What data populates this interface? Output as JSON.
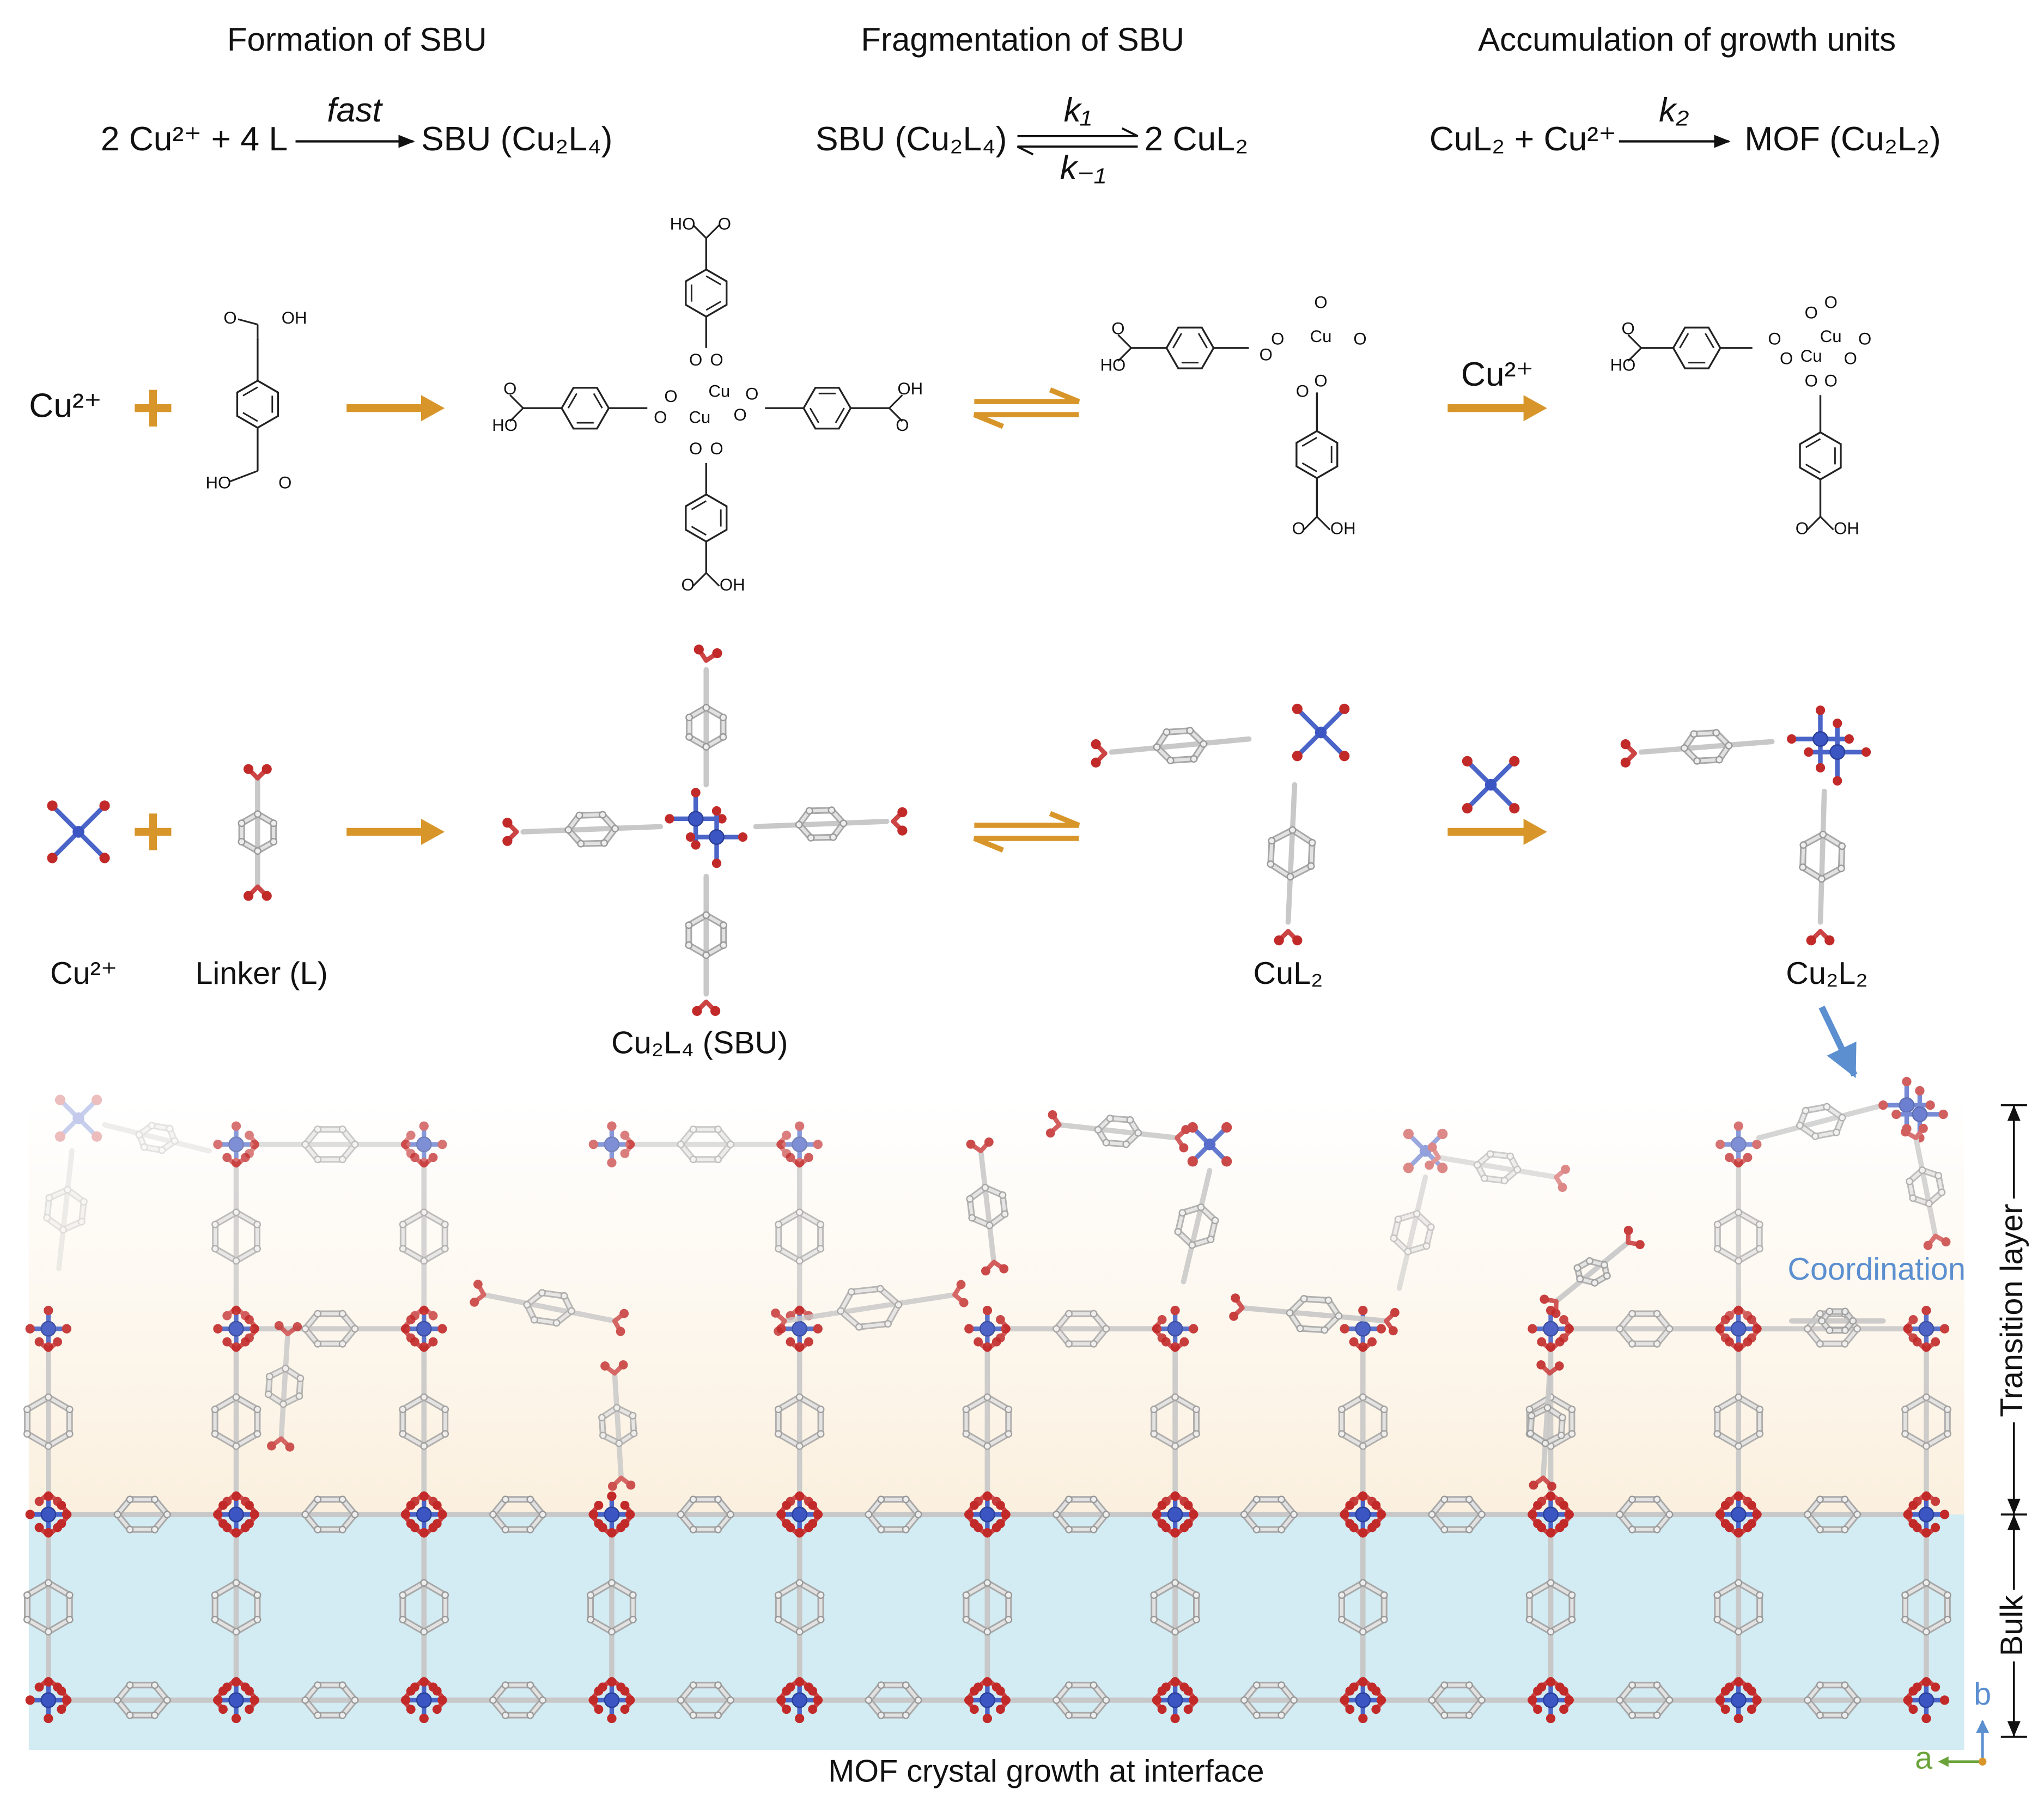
{
  "stages": [
    {
      "title": "Formation of SBU",
      "equation": {
        "left": "2 Cu²⁺ + 4 L",
        "over": "fast",
        "right": "SBU (Cu₂L₄)"
      }
    },
    {
      "title": "Fragmentation of SBU",
      "equation": {
        "left": "SBU (Cu₂L₄)",
        "over": "k₁",
        "under": "k₋₁",
        "right": "2 CuL₂"
      }
    },
    {
      "title": "Accumulation of growth units",
      "equation": {
        "left": "CuL₂ + Cu²⁺",
        "over": "k₂",
        "right": "MOF (Cu₂L₂)"
      }
    }
  ],
  "scheme": {
    "ion": "Cu²⁺",
    "arrow_reagent": "Cu²⁺"
  },
  "atoms": {
    "oxygen": "O",
    "hydroxyl": "OH",
    "hydroxyl_left": "HO",
    "copper": "Cu"
  },
  "models": {
    "ion": "Cu²⁺",
    "linker": "Linker (L)",
    "sbu": "Cu₂L₄ (SBU)",
    "cul2": "CuL₂",
    "cu2l2": "Cu₂L₂"
  },
  "interface": {
    "caption": "MOF crystal growth at interface",
    "coordination": "Coordination",
    "transition": "Transition layer",
    "bulk": "Bulk",
    "axis_a": "a",
    "axis_b": "b"
  }
}
